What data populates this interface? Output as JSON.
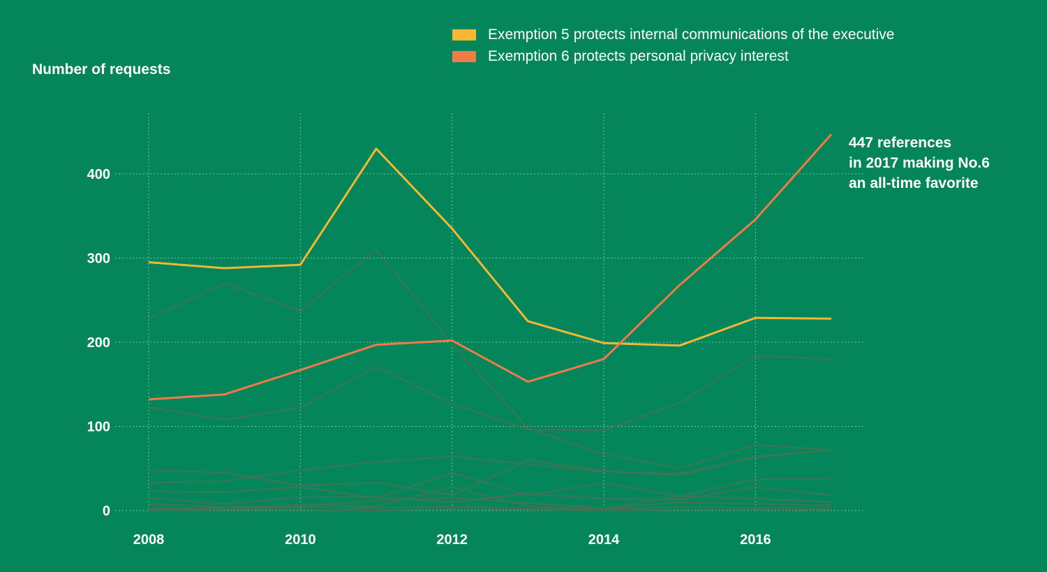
{
  "chart_data": {
    "type": "line",
    "ylabel": "Number of requests",
    "x": [
      2008,
      2009,
      2010,
      2011,
      2012,
      2013,
      2014,
      2015,
      2016,
      2017
    ],
    "xticks": [
      "2008",
      "2010",
      "2012",
      "2014",
      "2016"
    ],
    "yticks": [
      "0",
      "100",
      "200",
      "300",
      "400"
    ],
    "xlim": [
      2008,
      2017
    ],
    "ylim": [
      0,
      447
    ],
    "grid": "dotted",
    "legend_position": "top",
    "series": [
      {
        "name": "Exemption 5 protects internal communications of the executive",
        "color": "#f7b733",
        "highlight": true,
        "values": [
          295,
          288,
          292,
          430,
          335,
          225,
          199,
          196,
          229,
          228
        ]
      },
      {
        "name": "Exemption 6 protects personal privacy interest",
        "color": "#f27a46",
        "highlight": true,
        "values": [
          132,
          138,
          167,
          197,
          202,
          153,
          180,
          268,
          346,
          447
        ]
      }
    ],
    "background_series": [
      {
        "values": [
          228,
          270,
          237,
          310,
          198,
          98,
          67,
          50,
          78,
          72
        ]
      },
      {
        "values": [
          123,
          108,
          122,
          171,
          127,
          96,
          95,
          128,
          184,
          180
        ]
      },
      {
        "values": [
          33,
          35,
          48,
          58,
          64,
          55,
          46,
          44,
          63,
          72
        ]
      },
      {
        "values": [
          48,
          45,
          30,
          33,
          18,
          60,
          47,
          42,
          64,
          72
        ]
      },
      {
        "values": [
          23,
          22,
          28,
          15,
          45,
          18,
          33,
          17,
          37,
          38
        ]
      },
      {
        "values": [
          15,
          8,
          16,
          16,
          10,
          20,
          14,
          13,
          28,
          18
        ]
      },
      {
        "values": [
          3,
          3,
          7,
          5,
          28,
          5,
          2,
          17,
          14,
          10
        ]
      },
      {
        "values": [
          8,
          4,
          5,
          12,
          15,
          9,
          3,
          10,
          8,
          6
        ]
      },
      {
        "values": [
          1,
          2,
          4,
          3,
          5,
          2,
          2,
          4,
          3,
          3
        ]
      },
      {
        "values": [
          0,
          1,
          1,
          0,
          2,
          1,
          0,
          1,
          1,
          1
        ]
      }
    ],
    "annotation": {
      "lines": [
        "447 references",
        "in 2017 making No.6",
        "an all-time favorite"
      ]
    }
  },
  "colors": {
    "background": "#04865a",
    "grid": "#7fc4a6",
    "background_series": "#3f7456"
  }
}
